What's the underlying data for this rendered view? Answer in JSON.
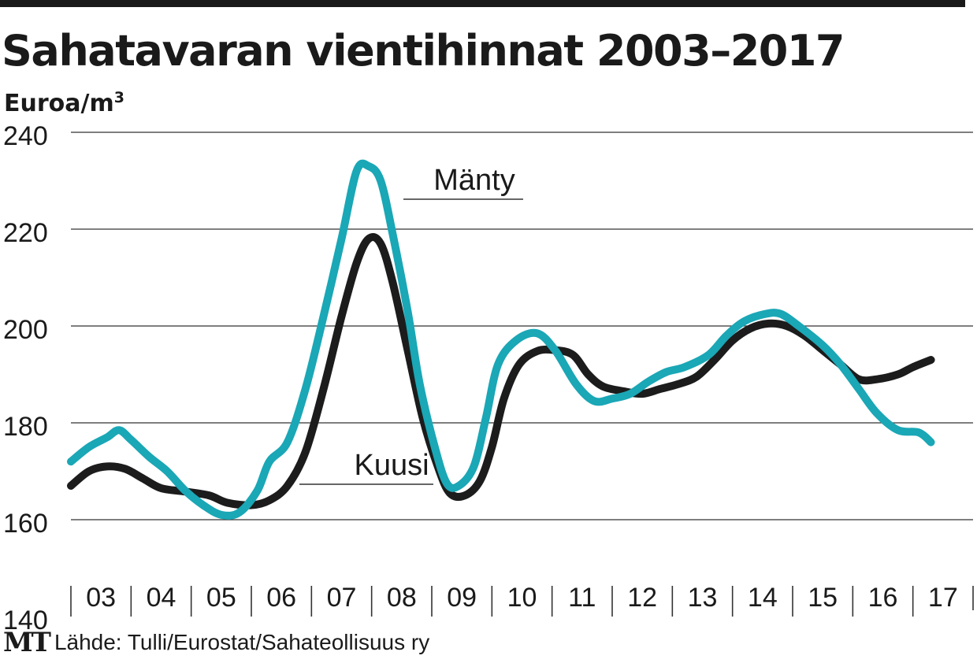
{
  "header": {
    "title": "Sahatavaran vientihinnat 2003–2017",
    "unit_label": "Euroa/m",
    "unit_superscript": "3"
  },
  "footer": {
    "logo": "MT",
    "source": "Lähde: Tulli/Eurostat/Sahateollisuus ry"
  },
  "colors": {
    "manty": "#1aa7b6",
    "kuusi": "#1c1c1c",
    "grid": "#333333"
  },
  "chart_data": {
    "type": "line",
    "title": "Sahatavaran vientihinnat 2003–2017",
    "ylabel": "Euroa/m3",
    "xlabel": "",
    "ylim": [
      140,
      240
    ],
    "yticks": [
      140,
      160,
      180,
      200,
      220,
      240
    ],
    "xlim": [
      2003,
      2018
    ],
    "categories": [
      "03",
      "04",
      "05",
      "06",
      "07",
      "08",
      "09",
      "10",
      "11",
      "12",
      "13",
      "14",
      "15",
      "16",
      "17"
    ],
    "grid": true,
    "legend": "inline labels",
    "series": [
      {
        "name": "Mänty",
        "color_key": "manty",
        "points": [
          [
            2003.0,
            172
          ],
          [
            2003.3,
            175
          ],
          [
            2003.6,
            177
          ],
          [
            2003.8,
            178.5
          ],
          [
            2004.0,
            176.5
          ],
          [
            2004.3,
            173
          ],
          [
            2004.6,
            170
          ],
          [
            2004.9,
            166
          ],
          [
            2005.2,
            163
          ],
          [
            2005.5,
            161
          ],
          [
            2005.8,
            161.5
          ],
          [
            2006.1,
            166
          ],
          [
            2006.3,
            172
          ],
          [
            2006.6,
            176
          ],
          [
            2006.9,
            187
          ],
          [
            2007.2,
            202
          ],
          [
            2007.5,
            218
          ],
          [
            2007.75,
            232
          ],
          [
            2007.95,
            233
          ],
          [
            2008.15,
            230
          ],
          [
            2008.35,
            219
          ],
          [
            2008.6,
            203
          ],
          [
            2008.8,
            188
          ],
          [
            2009.05,
            175
          ],
          [
            2009.25,
            167.5
          ],
          [
            2009.45,
            167
          ],
          [
            2009.7,
            171
          ],
          [
            2009.9,
            181
          ],
          [
            2010.1,
            192
          ],
          [
            2010.4,
            197
          ],
          [
            2010.75,
            198.5
          ],
          [
            2011.05,
            195
          ],
          [
            2011.4,
            188
          ],
          [
            2011.7,
            184.5
          ],
          [
            2012.0,
            185
          ],
          [
            2012.3,
            186
          ],
          [
            2012.6,
            188.5
          ],
          [
            2012.9,
            190.5
          ],
          [
            2013.2,
            191.5
          ],
          [
            2013.6,
            194
          ],
          [
            2013.9,
            198
          ],
          [
            2014.2,
            201
          ],
          [
            2014.55,
            202.5
          ],
          [
            2014.8,
            202.5
          ],
          [
            2015.1,
            200
          ],
          [
            2015.5,
            196
          ],
          [
            2015.8,
            192
          ],
          [
            2016.1,
            187
          ],
          [
            2016.4,
            182
          ],
          [
            2016.75,
            178.5
          ],
          [
            2017.1,
            178
          ],
          [
            2017.3,
            176
          ]
        ]
      },
      {
        "name": "Kuusi",
        "color_key": "kuusi",
        "points": [
          [
            2003.0,
            167
          ],
          [
            2003.3,
            170
          ],
          [
            2003.6,
            171
          ],
          [
            2003.9,
            170.5
          ],
          [
            2004.2,
            168.5
          ],
          [
            2004.5,
            166.5
          ],
          [
            2004.9,
            165.8
          ],
          [
            2005.3,
            165
          ],
          [
            2005.6,
            163.5
          ],
          [
            2006.0,
            163
          ],
          [
            2006.3,
            164
          ],
          [
            2006.6,
            167
          ],
          [
            2006.9,
            174
          ],
          [
            2007.2,
            187
          ],
          [
            2007.5,
            202
          ],
          [
            2007.75,
            213
          ],
          [
            2007.95,
            218
          ],
          [
            2008.15,
            217
          ],
          [
            2008.35,
            209
          ],
          [
            2008.6,
            195
          ],
          [
            2008.85,
            181
          ],
          [
            2009.1,
            171
          ],
          [
            2009.3,
            165.5
          ],
          [
            2009.55,
            165
          ],
          [
            2009.8,
            168
          ],
          [
            2010.0,
            175
          ],
          [
            2010.2,
            185
          ],
          [
            2010.45,
            192
          ],
          [
            2010.75,
            194.8
          ],
          [
            2011.05,
            195
          ],
          [
            2011.35,
            194
          ],
          [
            2011.6,
            190
          ],
          [
            2011.85,
            187.5
          ],
          [
            2012.2,
            186.5
          ],
          [
            2012.5,
            186
          ],
          [
            2012.8,
            187
          ],
          [
            2013.1,
            188
          ],
          [
            2013.4,
            189.5
          ],
          [
            2013.7,
            193
          ],
          [
            2014.0,
            197
          ],
          [
            2014.3,
            199.5
          ],
          [
            2014.6,
            200.5
          ],
          [
            2014.9,
            200
          ],
          [
            2015.2,
            198
          ],
          [
            2015.5,
            195
          ],
          [
            2015.8,
            192
          ],
          [
            2016.1,
            189
          ],
          [
            2016.4,
            189
          ],
          [
            2016.75,
            190
          ],
          [
            2017.0,
            191.5
          ],
          [
            2017.3,
            193
          ]
        ]
      }
    ],
    "annotations": [
      {
        "text": "Mänty",
        "series": "Mänty"
      },
      {
        "text": "Kuusi",
        "series": "Kuusi"
      }
    ]
  }
}
